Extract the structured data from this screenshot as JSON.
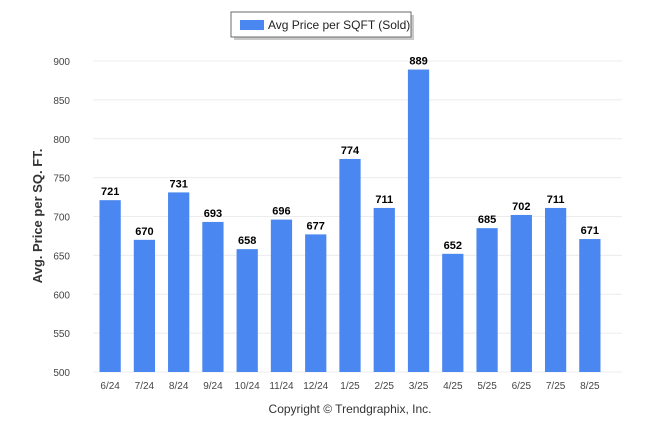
{
  "chart_data": {
    "type": "bar",
    "categories": [
      "6/24",
      "7/24",
      "8/24",
      "9/24",
      "10/24",
      "11/24",
      "12/24",
      "1/25",
      "2/25",
      "3/25",
      "4/25",
      "5/25",
      "6/25",
      "7/25",
      "8/25"
    ],
    "series": [
      {
        "name": "Avg Price per SQFT (Sold)",
        "color": "#4a87f0",
        "values": [
          721,
          670,
          731,
          693,
          658,
          696,
          677,
          774,
          711,
          889,
          652,
          685,
          702,
          711,
          671
        ]
      }
    ],
    "xlabel": "",
    "ylabel": "Avg. Price per SQ. FT.",
    "ylim": [
      500,
      900
    ],
    "yticks": [
      500,
      550,
      600,
      650,
      700,
      750,
      800,
      850,
      900
    ],
    "grid": true,
    "legend": "top-center",
    "data_labels": true
  },
  "footer": {
    "credit": "Copyright © Trendgraphix, Inc."
  }
}
